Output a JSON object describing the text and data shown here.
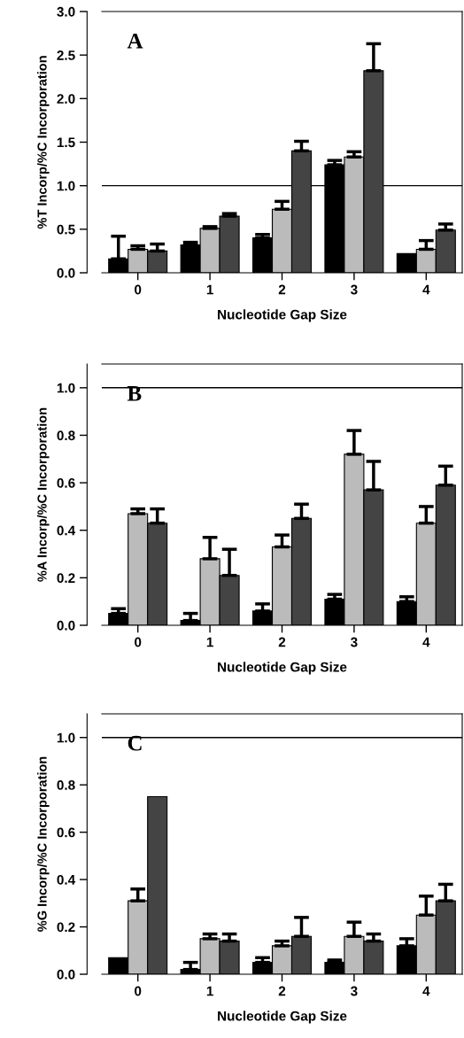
{
  "chart_data": [
    {
      "type": "bar",
      "xlabel": "Nucleotide Gap Size",
      "ylabel": "%T Incorp/%C Incorporation",
      "categories": [
        "0",
        "1",
        "2",
        "3",
        "4"
      ],
      "ylim": [
        0,
        3.0
      ],
      "yticks": [
        {
          "value": 0,
          "label": "0.0"
        },
        {
          "value": 0.5,
          "label": "0.5"
        },
        {
          "value": 1.0,
          "label": "1.0"
        },
        {
          "value": 1.5,
          "label": "1.5"
        },
        {
          "value": 2.0,
          "label": "2.0"
        },
        {
          "value": 2.5,
          "label": "2.5"
        },
        {
          "value": 3.0,
          "label": "3.0"
        }
      ],
      "grid": false,
      "legend": false,
      "annotations": [
        "A"
      ],
      "ref_lines": [
        {
          "axis": "y",
          "value": 1.0,
          "color": "#000000"
        }
      ],
      "series": [
        {
          "color": "#000000",
          "values": [
            0.16,
            0.32,
            0.4,
            1.24,
            0.22
          ],
          "errors": [
            [
              0.16,
              0.42
            ],
            [
              0.32,
              0.35
            ],
            [
              0.4,
              0.44
            ],
            [
              1.24,
              1.29
            ],
            null
          ]
        },
        {
          "color": "#bbbbbb",
          "values": [
            0.27,
            0.51,
            0.73,
            1.33,
            0.27
          ],
          "errors": [
            [
              0.27,
              0.31
            ],
            [
              0.51,
              0.53
            ],
            [
              0.73,
              0.82
            ],
            [
              1.33,
              1.39
            ],
            [
              0.27,
              0.37
            ]
          ]
        },
        {
          "color": "#444444",
          "values": [
            0.25,
            0.65,
            1.4,
            2.32,
            0.49
          ],
          "errors": [
            [
              0.25,
              0.33
            ],
            [
              0.65,
              0.68
            ],
            [
              1.4,
              1.51
            ],
            [
              2.32,
              2.63
            ],
            [
              0.49,
              0.56
            ]
          ]
        }
      ]
    },
    {
      "type": "bar",
      "xlabel": "Nucleotide Gap Size",
      "ylabel": "%A Incorp/%C Incorporation",
      "categories": [
        "0",
        "1",
        "2",
        "3",
        "4"
      ],
      "ylim": [
        0,
        1.1
      ],
      "yticks": [
        {
          "value": 0,
          "label": "0.0"
        },
        {
          "value": 0.2,
          "label": "0.2"
        },
        {
          "value": 0.4,
          "label": "0.4"
        },
        {
          "value": 0.6,
          "label": "0.6"
        },
        {
          "value": 0.8,
          "label": "0.8"
        },
        {
          "value": 1.0,
          "label": "1.0"
        }
      ],
      "grid": false,
      "legend": false,
      "annotations": [
        "B"
      ],
      "ref_lines": [
        {
          "axis": "y",
          "value": 1.0,
          "color": "#000000"
        }
      ],
      "series": [
        {
          "color": "#000000",
          "values": [
            0.05,
            0.02,
            0.06,
            0.11,
            0.1
          ],
          "errors": [
            [
              0.05,
              0.07
            ],
            [
              0.02,
              0.05
            ],
            [
              0.06,
              0.09
            ],
            [
              0.11,
              0.13
            ],
            [
              0.1,
              0.12
            ]
          ]
        },
        {
          "color": "#bbbbbb",
          "values": [
            0.47,
            0.28,
            0.33,
            0.72,
            0.43
          ],
          "errors": [
            [
              0.47,
              0.49
            ],
            [
              0.28,
              0.37
            ],
            [
              0.33,
              0.38
            ],
            [
              0.72,
              0.82
            ],
            [
              0.43,
              0.5
            ]
          ]
        },
        {
          "color": "#444444",
          "values": [
            0.43,
            0.21,
            0.45,
            0.57,
            0.59
          ],
          "errors": [
            [
              0.43,
              0.49
            ],
            [
              0.21,
              0.32
            ],
            [
              0.45,
              0.51
            ],
            [
              0.57,
              0.69
            ],
            [
              0.59,
              0.67
            ]
          ]
        }
      ]
    },
    {
      "type": "bar",
      "xlabel": "Nucleotide Gap Size",
      "ylabel": "%G Incorp/%C Incorporation",
      "categories": [
        "0",
        "1",
        "2",
        "3",
        "4"
      ],
      "ylim": [
        0,
        1.1
      ],
      "yticks": [
        {
          "value": 0,
          "label": "0.0"
        },
        {
          "value": 0.2,
          "label": "0.2"
        },
        {
          "value": 0.4,
          "label": "0.4"
        },
        {
          "value": 0.6,
          "label": "0.6"
        },
        {
          "value": 0.8,
          "label": "0.8"
        },
        {
          "value": 1.0,
          "label": "1.0"
        }
      ],
      "grid": false,
      "legend": false,
      "annotations": [
        "C"
      ],
      "ref_lines": [
        {
          "axis": "y",
          "value": 1.0,
          "color": "#000000"
        }
      ],
      "series": [
        {
          "color": "#000000",
          "values": [
            0.07,
            0.02,
            0.05,
            0.05,
            0.12
          ],
          "errors": [
            null,
            [
              0.02,
              0.05
            ],
            [
              0.05,
              0.07
            ],
            [
              0.05,
              0.06
            ],
            [
              0.12,
              0.15
            ]
          ]
        },
        {
          "color": "#bbbbbb",
          "values": [
            0.31,
            0.15,
            0.12,
            0.16,
            0.25
          ],
          "errors": [
            [
              0.31,
              0.36
            ],
            [
              0.15,
              0.17
            ],
            [
              0.12,
              0.14
            ],
            [
              0.16,
              0.22
            ],
            [
              0.25,
              0.33
            ]
          ]
        },
        {
          "color": "#444444",
          "values": [
            0.75,
            0.14,
            0.16,
            0.14,
            0.31
          ],
          "errors": [
            null,
            [
              0.14,
              0.17
            ],
            [
              0.16,
              0.24
            ],
            [
              0.14,
              0.17
            ],
            [
              0.31,
              0.38
            ]
          ]
        }
      ]
    }
  ]
}
